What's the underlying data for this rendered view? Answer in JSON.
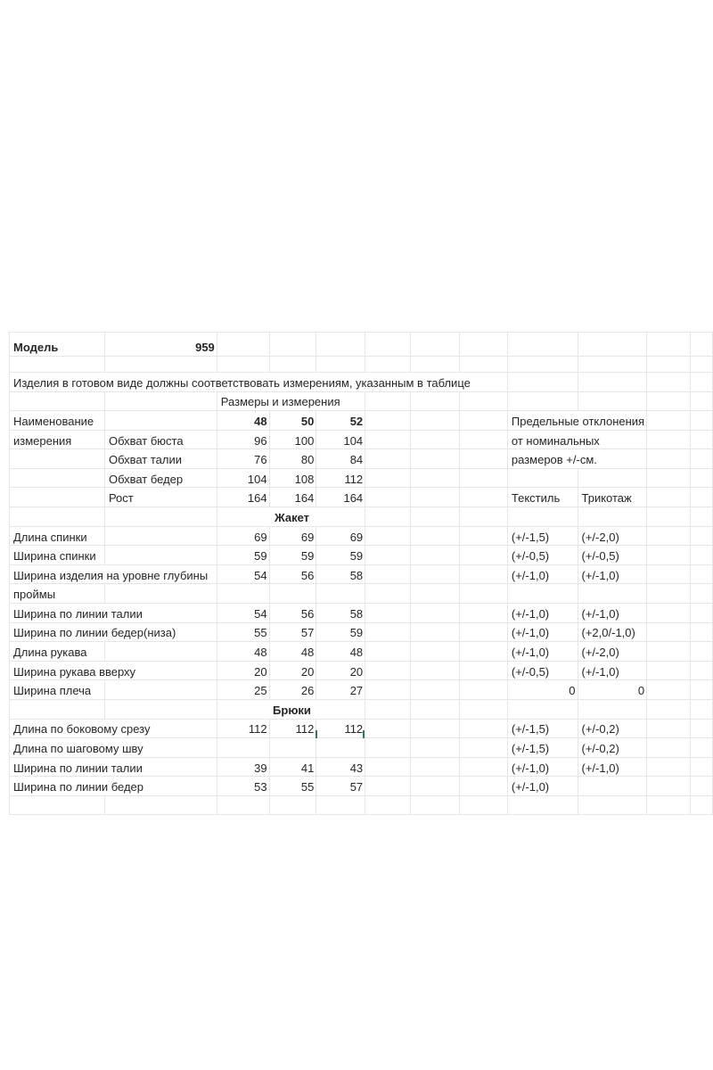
{
  "model_label": "Модель",
  "model_number": "959",
  "note": "Изделия в готовом виде должны соответствовать измерениям, указанным в таблице",
  "table_title": "Размеры и измерения",
  "header": {
    "name_line1": "Наименование",
    "name_line2": "измерения",
    "sizes": [
      "48",
      "50",
      "52"
    ],
    "rows": [
      {
        "label": "Обхват бюста",
        "values": [
          "96",
          "100",
          "104"
        ]
      },
      {
        "label": "Обхват талии",
        "values": [
          "76",
          "80",
          "84"
        ]
      },
      {
        "label": "Обхват бедер",
        "values": [
          "104",
          "108",
          "112"
        ]
      },
      {
        "label": "Рост",
        "values": [
          "164",
          "164",
          "164"
        ]
      }
    ],
    "tolerance_note": [
      "Предельные отклонения",
      "от номинальных",
      "размеров +/-см."
    ],
    "tolerance_cols": [
      "Текстиль",
      "Трикотаж"
    ]
  },
  "sections": [
    {
      "title": "Жакет",
      "rows": [
        {
          "label": "Длина спинки",
          "values": [
            "69",
            "69",
            "69"
          ],
          "textile": "(+/-1,5)",
          "knit": "(+/-2,0)"
        },
        {
          "label": "Ширина спинки",
          "values": [
            "59",
            "59",
            "59"
          ],
          "textile": "(+/-0,5)",
          "knit": "(+/-0,5)"
        },
        {
          "label": "Ширина изделия на уровне глубины",
          "values": [
            "54",
            "56",
            "58"
          ],
          "textile": "(+/-1,0)",
          "knit": "(+/-1,0)"
        },
        {
          "label": "проймы",
          "values": [
            "",
            "",
            ""
          ],
          "textile": "",
          "knit": ""
        },
        {
          "label": "Ширина по линии талии",
          "values": [
            "54",
            "56",
            "58"
          ],
          "textile": "(+/-1,0)",
          "knit": "(+/-1,0)"
        },
        {
          "label": "Ширина по линии бедер(низа)",
          "values": [
            "55",
            "57",
            "59"
          ],
          "textile": "(+/-1,0)",
          "knit": "(+2,0/-1,0)"
        },
        {
          "label": "Длина рукава",
          "values": [
            "48",
            "48",
            "48"
          ],
          "textile": "(+/-1,0)",
          "knit": "(+/-2,0)"
        },
        {
          "label": "Ширина рукава вверху",
          "values": [
            "20",
            "20",
            "20"
          ],
          "textile": "(+/-0,5)",
          "knit": "(+/-1,0)"
        },
        {
          "label": "Ширина плеча",
          "values": [
            "25",
            "26",
            "27"
          ],
          "textile": "0",
          "knit": "0"
        }
      ]
    },
    {
      "title": "Брюки",
      "rows": [
        {
          "label": "Длина по боковому срезу",
          "values": [
            "112",
            "112",
            "112"
          ],
          "textile": "(+/-1,5)",
          "knit": "(+/-0,2)"
        },
        {
          "label": "Длина по шаговому шву",
          "values": [
            "",
            "",
            ""
          ],
          "textile": "(+/-1,5)",
          "knit": "(+/-0,2)"
        },
        {
          "label": "Ширина по линии талии",
          "values": [
            "39",
            "41",
            "43"
          ],
          "textile": "(+/-1,0)",
          "knit": "(+/-1,0)"
        },
        {
          "label": "Ширина по линии бедер",
          "values": [
            "53",
            "55",
            "57"
          ],
          "textile": "(+/-1,0)",
          "knit": ""
        }
      ]
    }
  ],
  "colors": {
    "grid_dark": "#4b4b4b",
    "grid_light": "#e6e6e8",
    "selection_green": "#2e7d54",
    "text": "#262626"
  }
}
